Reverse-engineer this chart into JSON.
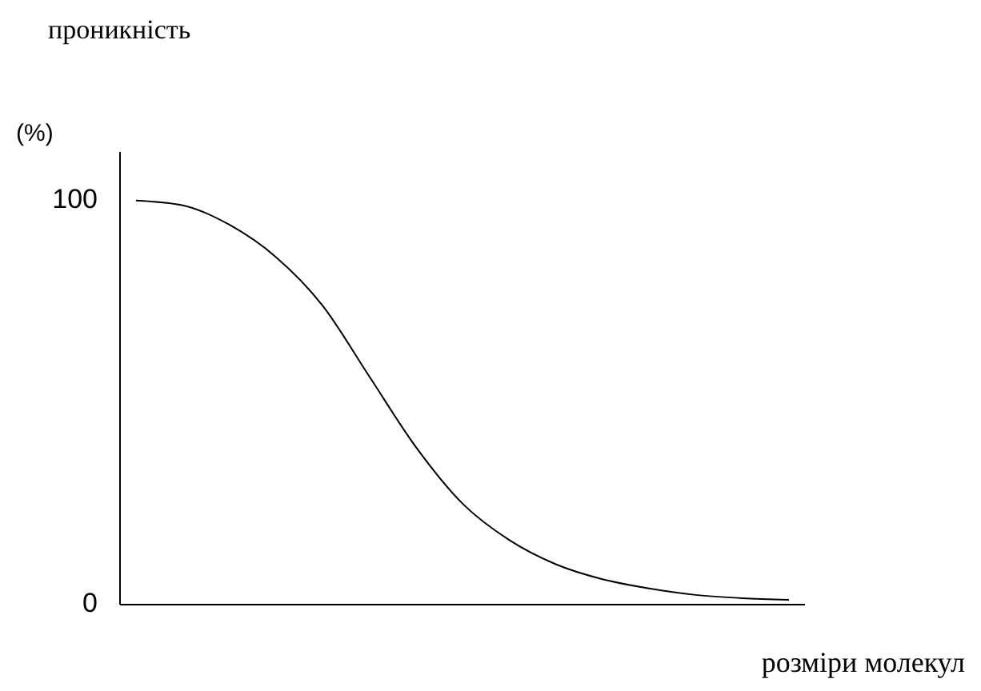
{
  "chart_data": {
    "type": "line",
    "xlabel": "розміри молекул",
    "annotations": [
      "проникність",
      "(%)"
    ],
    "categories": [
      null,
      null,
      null,
      null,
      null,
      null,
      null,
      null,
      null,
      null,
      null,
      null,
      null,
      null,
      null
    ],
    "series": [
      {
        "color": "#000000",
        "values": [
          100,
          98.8,
          94,
          86,
          74,
          56.5,
          39,
          25,
          16,
          10,
          6.3,
          4,
          2.4,
          1.6,
          1.2
        ]
      }
    ],
    "ylim": [
      0,
      112
    ],
    "yticks": [
      0,
      100
    ],
    "grid": false,
    "marker": "none",
    "line_style": "solid"
  }
}
